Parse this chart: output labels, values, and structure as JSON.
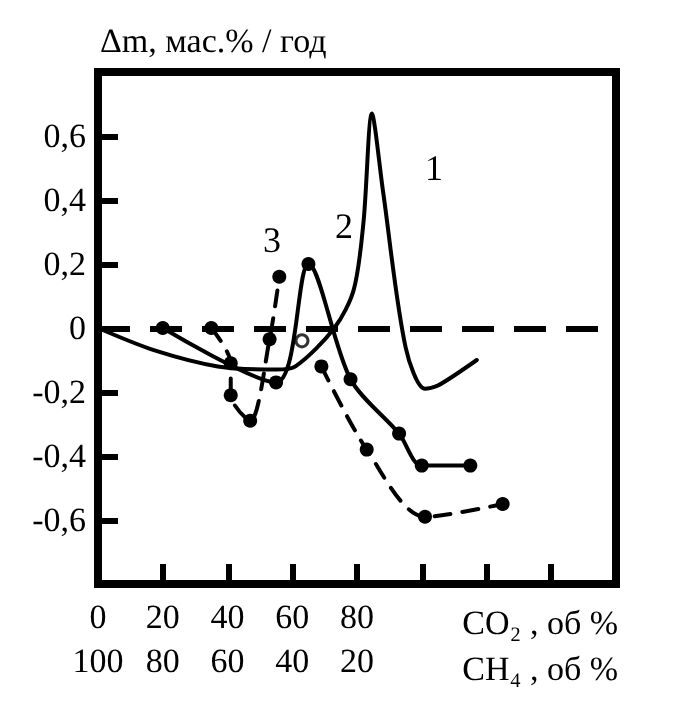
{
  "chart_data": {
    "type": "line",
    "ylabel": "Δm, мас.% / год",
    "xlabel": "CO₂ , об %",
    "x2label": "CH₄ , об %",
    "xlim": [
      0,
      160
    ],
    "xticks": [
      0,
      20,
      40,
      60,
      80,
      {
        "value": 100,
        "label": null
      },
      {
        "value": 120,
        "label": null
      },
      {
        "value": 140,
        "label": null
      }
    ],
    "x2lim": [
      100,
      -60
    ],
    "x2ticks": [
      100,
      80,
      60,
      40,
      20
    ],
    "ylim": [
      -0.8,
      0.8
    ],
    "yticks": [
      {
        "value": -0.6,
        "label": "-0,6"
      },
      {
        "value": -0.4,
        "label": "-0,4"
      },
      {
        "value": -0.2,
        "label": "-0,2"
      },
      0,
      {
        "value": 0.2,
        "label": "0,2"
      },
      {
        "value": 0.4,
        "label": "0,4"
      },
      {
        "value": 0.6,
        "label": "0,6"
      }
    ],
    "grid": false,
    "series": [
      {
        "color": "#000000",
        "marker": "none",
        "line_style": "solid",
        "x": [
          0,
          17.5,
          37,
          55,
          61,
          73,
          79,
          82,
          84.6,
          88,
          95,
          101,
          105,
          117
        ],
        "values": [
          0,
          -0.07,
          -0.12,
          -0.13,
          -0.12,
          0,
          0.12,
          0.33,
          0.67,
          0.43,
          -0.06,
          -0.19,
          -0.18,
          -0.1
        ]
      },
      {
        "color": "#000000",
        "marker": "circle",
        "line_style": "solid",
        "x": [
          20,
          55,
          65,
          78,
          93,
          100,
          115
        ],
        "values": [
          0,
          -0.17,
          0.2,
          -0.16,
          -0.33,
          -0.43,
          -0.43
        ]
      },
      {
        "color": "#000000",
        "marker": "circle",
        "line_style": "dashed",
        "x": [
          35,
          41,
          41,
          47,
          53,
          56,
          62,
          69,
          83,
          101,
          125
        ],
        "values": [
          0,
          -0.11,
          -0.21,
          -0.29,
          -0.035,
          0.16,
          null,
          -0.12,
          -0.38,
          -0.59,
          -0.55
        ]
      },
      {
        "type": "scatter",
        "color": "#000000",
        "marker": "circle",
        "x": [
          63
        ],
        "values": [
          -0.04
        ]
      }
    ],
    "ref_lines": [
      {
        "axis": "y",
        "value": 0,
        "label": null,
        "color": "#000000",
        "line_style": "dashed"
      }
    ],
    "annotations": [
      "1",
      "2",
      "3"
    ]
  }
}
